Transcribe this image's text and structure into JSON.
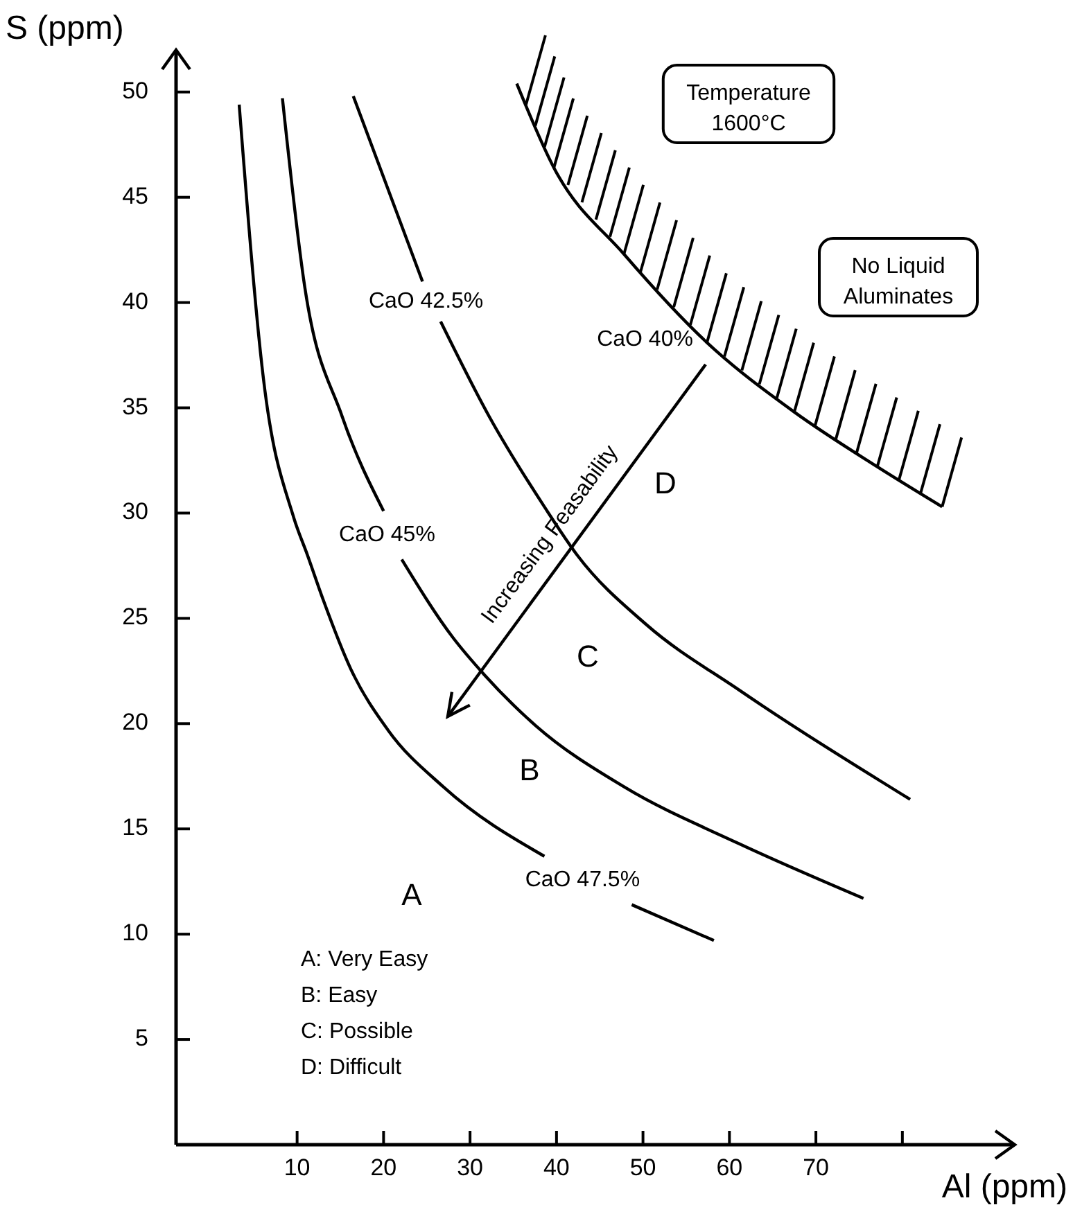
{
  "chart_data": {
    "type": "line",
    "xlabel": "Al (ppm)",
    "ylabel": "S (ppm)",
    "xlim": [
      -4,
      93
    ],
    "ylim": [
      0,
      52
    ],
    "xticks": [
      10,
      20,
      30,
      40,
      50,
      60,
      70,
      {
        "value": 80,
        "label": null
      }
    ],
    "yticks": [
      5,
      10,
      15,
      20,
      25,
      30,
      35,
      40,
      45,
      50
    ],
    "grid": false,
    "legend": false,
    "series": [
      {
        "name": "CaO 47.5%",
        "color": "#000000",
        "x": [
          3.3,
          6.1,
          9.6,
          11.2,
          13.0,
          16.2,
          20.5,
          26.9,
          38.6,
          43.5,
          48.7,
          58.2
        ],
        "values": [
          49.4,
          36.4,
          29.8,
          28.0,
          25.9,
          22.6,
          19.7,
          17.0,
          13.7,
          null,
          11.4,
          9.7
        ]
      },
      {
        "name": "CaO 45%",
        "color": "#000000",
        "x": [
          8.3,
          10.9,
          15.2,
          20.0,
          21.0,
          22.1,
          28.0,
          31.7,
          37.6,
          47.8,
          61.1,
          75.5
        ],
        "values": [
          49.7,
          40.7,
          34.6,
          30.1,
          null,
          27.8,
          24.1,
          22.3,
          19.9,
          17.0,
          14.3,
          11.7
        ]
      },
      {
        "name": "CaO 42.5%",
        "color": "#000000",
        "x": [
          16.5,
          24.5,
          25.5,
          26.6,
          32.2,
          38.6,
          42.4,
          50.4,
          61.1,
          80.9
        ],
        "values": [
          49.8,
          41.0,
          null,
          39.1,
          34.6,
          30.3,
          28.0,
          24.7,
          21.6,
          16.4
        ]
      },
      {
        "name": "CaO 40%",
        "color": "#000000",
        "x": [
          35.4,
          39.7,
          47.8,
          57.4,
          67.5,
          77.1,
          84.6
        ],
        "values": [
          50.4,
          46.4,
          42.3,
          38.1,
          34.8,
          32.2,
          30.3
        ]
      }
    ],
    "annotations": [
      "A",
      "B",
      "C",
      "D",
      "Increasing Feasability",
      "Temperature\n1600°C",
      "No Liquid\nAluminates",
      "A: Very Easy",
      "B: Easy",
      "C: Possible",
      "D: Difficult"
    ]
  }
}
